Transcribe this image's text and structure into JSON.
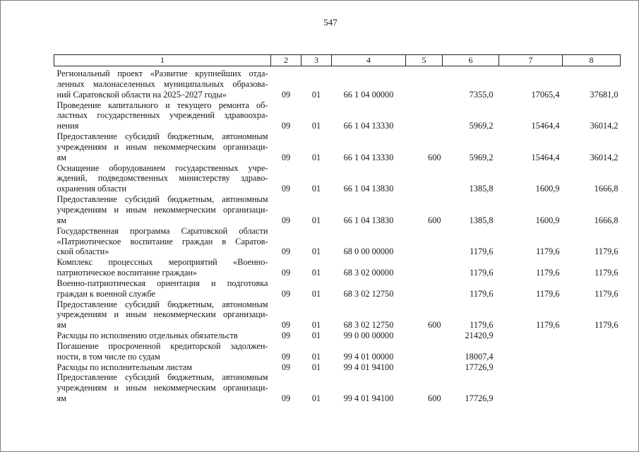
{
  "page": {
    "number": "547"
  },
  "table": {
    "columns": [
      "1",
      "2",
      "3",
      "4",
      "5",
      "6",
      "7",
      "8"
    ],
    "rows": [
      {
        "lines": [
          "Региональный проект «Развитие крупнейших отда-",
          "ленных малонаселенных муниципальных образова-",
          "ний Саратовской области на 2025–2027 годы»"
        ],
        "rz": "09",
        "prz": "01",
        "csr": "66 1 04 00000",
        "vr": "",
        "y1": "7355,0",
        "y2": "17065,4",
        "y3": "37681,0"
      },
      {
        "lines": [
          "Проведение капитального и текущего ремонта об-",
          "ластных государственных учреждений здравоохра-",
          "нения"
        ],
        "rz": "09",
        "prz": "01",
        "csr": "66 1 04 13330",
        "vr": "",
        "y1": "5969,2",
        "y2": "15464,4",
        "y3": "36014,2"
      },
      {
        "lines": [
          "Предоставление субсидий бюджетным, автономным",
          "учреждениям и иным некоммерческим организаци-",
          "ям"
        ],
        "rz": "09",
        "prz": "01",
        "csr": "66 1 04 13330",
        "vr": "600",
        "y1": "5969,2",
        "y2": "15464,4",
        "y3": "36014,2"
      },
      {
        "lines": [
          "Оснащение оборудованием государственных учре-",
          "ждений, подведомственных министерству здраво-",
          "охранения области"
        ],
        "rz": "09",
        "prz": "01",
        "csr": "66 1 04 13830",
        "vr": "",
        "y1": "1385,8",
        "y2": "1600,9",
        "y3": "1666,8"
      },
      {
        "lines": [
          "Предоставление субсидий бюджетным, автономным",
          "учреждениям и иным некоммерческим организаци-",
          "ям"
        ],
        "rz": "09",
        "prz": "01",
        "csr": "66 1 04 13830",
        "vr": "600",
        "y1": "1385,8",
        "y2": "1600,9",
        "y3": "1666,8"
      },
      {
        "lines": [
          "Государственная программа Саратовской области",
          "«Патриотическое воспитание граждан в Саратов-",
          "ской области»"
        ],
        "rz": "09",
        "prz": "01",
        "csr": "68 0 00 00000",
        "vr": "",
        "y1": "1179,6",
        "y2": "1179,6",
        "y3": "1179,6"
      },
      {
        "lines": [
          "Комплекс процессных мероприятий «Военно-",
          "патриотическое воспитание граждан»"
        ],
        "rz": "09",
        "prz": "01",
        "csr": "68 3 02 00000",
        "vr": "",
        "y1": "1179,6",
        "y2": "1179,6",
        "y3": "1179,6"
      },
      {
        "lines": [
          "Военно-патриотическая ориентация и подготовка",
          "граждан к военной службе"
        ],
        "rz": "09",
        "prz": "01",
        "csr": "68 3 02 12750",
        "vr": "",
        "y1": "1179,6",
        "y2": "1179,6",
        "y3": "1179,6"
      },
      {
        "lines": [
          "Предоставление субсидий бюджетным, автономным",
          "учреждениям и иным некоммерческим организаци-",
          "ям"
        ],
        "rz": "09",
        "prz": "01",
        "csr": "68 3 02 12750",
        "vr": "600",
        "y1": "1179,6",
        "y2": "1179,6",
        "y3": "1179,6"
      },
      {
        "lines": [
          "Расходы по исполнению отдельных обязательств"
        ],
        "rz": "09",
        "prz": "01",
        "csr": "99 0 00 00000",
        "vr": "",
        "y1": "21420,9",
        "y2": "",
        "y3": ""
      },
      {
        "lines": [
          "Погашение просроченной кредиторской задолжен-",
          "ности, в том числе по судам"
        ],
        "rz": "09",
        "prz": "01",
        "csr": "99 4 01 00000",
        "vr": "",
        "y1": "18007,4",
        "y2": "",
        "y3": ""
      },
      {
        "lines": [
          "Расходы по исполнительным листам"
        ],
        "rz": "09",
        "prz": "01",
        "csr": "99 4 01 94100",
        "vr": "",
        "y1": "17726,9",
        "y2": "",
        "y3": ""
      },
      {
        "lines": [
          "Предоставление субсидий бюджетным, автономным",
          "учреждениям и иным некоммерческим организаци-",
          "ям"
        ],
        "rz": "09",
        "prz": "01",
        "csr": "99 4 01 94100",
        "vr": "600",
        "y1": "17726,9",
        "y2": "",
        "y3": ""
      }
    ]
  }
}
